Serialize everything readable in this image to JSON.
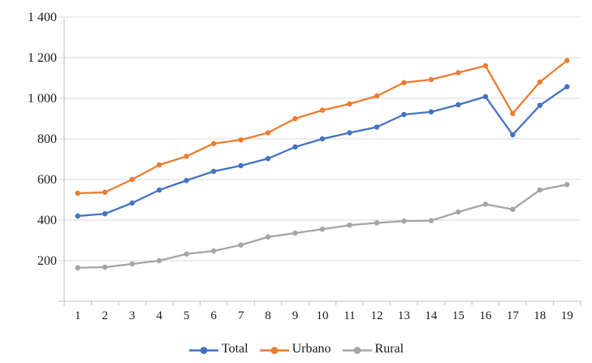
{
  "chart_data": {
    "type": "line",
    "title": "",
    "xlabel": "",
    "ylabel": "",
    "categories": [
      "1",
      "2",
      "3",
      "4",
      "5",
      "6",
      "7",
      "8",
      "9",
      "10",
      "11",
      "12",
      "13",
      "14",
      "15",
      "16",
      "17",
      "18",
      "19"
    ],
    "ylim": [
      0,
      1400
    ],
    "yticks": [
      {
        "value": 200,
        "label": "200"
      },
      {
        "value": 400,
        "label": "400"
      },
      {
        "value": 600,
        "label": "600"
      },
      {
        "value": 800,
        "label": "800"
      },
      {
        "value": 1000,
        "label": "1 000"
      },
      {
        "value": 1200,
        "label": "1 200"
      },
      {
        "value": 1400,
        "label": "1 400"
      }
    ],
    "grid": "horizontal",
    "legend_position": "bottom",
    "series": [
      {
        "name": "Total",
        "color": "#4472C4",
        "values": [
          420,
          431,
          484,
          548,
          595,
          640,
          668,
          703,
          760,
          800,
          830,
          858,
          920,
          933,
          968,
          1008,
          820,
          965,
          1057
        ]
      },
      {
        "name": "Urbano",
        "color": "#ED7D31",
        "values": [
          532,
          537,
          600,
          672,
          714,
          777,
          795,
          830,
          900,
          941,
          972,
          1011,
          1077,
          1092,
          1126,
          1160,
          925,
          1080,
          1186
        ]
      },
      {
        "name": "Rural",
        "color": "#A5A5A5",
        "values": [
          165,
          168,
          184,
          200,
          233,
          248,
          277,
          317,
          336,
          355,
          375,
          386,
          395,
          397,
          440,
          478,
          453,
          548,
          575
        ]
      }
    ]
  },
  "style": {
    "gridline_color": "#D9D9D9",
    "axis_color": "#BFBFBF",
    "text_color": "#1a1a1a",
    "axis_font_size": 16
  }
}
